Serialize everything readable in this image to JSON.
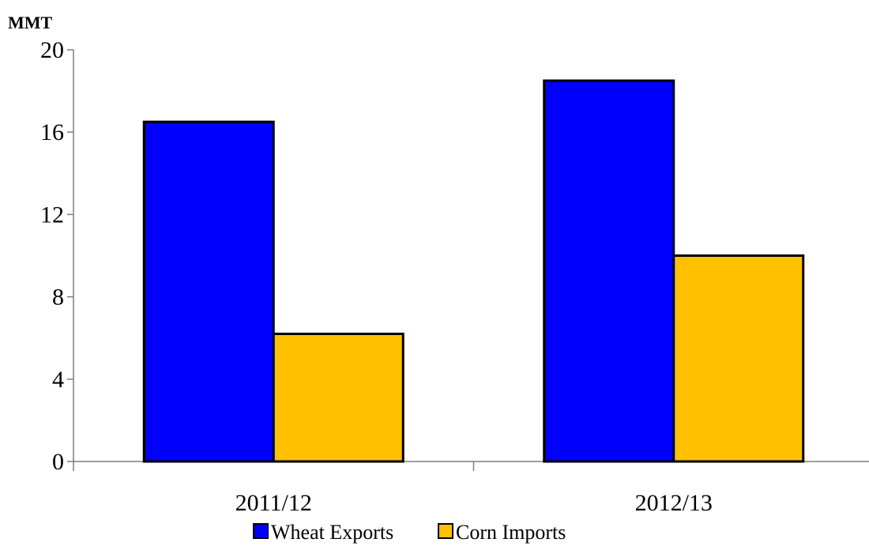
{
  "chart_data": {
    "type": "bar",
    "ylabel": "MMT",
    "xlabel": "",
    "categories": [
      "2011/12",
      "2012/13"
    ],
    "ylim": [
      0,
      20
    ],
    "yticks": [
      0,
      4,
      8,
      12,
      16,
      20
    ],
    "grid": false,
    "legend_position": "bottom",
    "series": [
      {
        "name": "Wheat Exports",
        "color": "#0000FF",
        "values": [
          16.5,
          18.5
        ]
      },
      {
        "name": "Corn Imports",
        "color": "#FFC000",
        "values": [
          6.2,
          10.0
        ]
      }
    ]
  }
}
